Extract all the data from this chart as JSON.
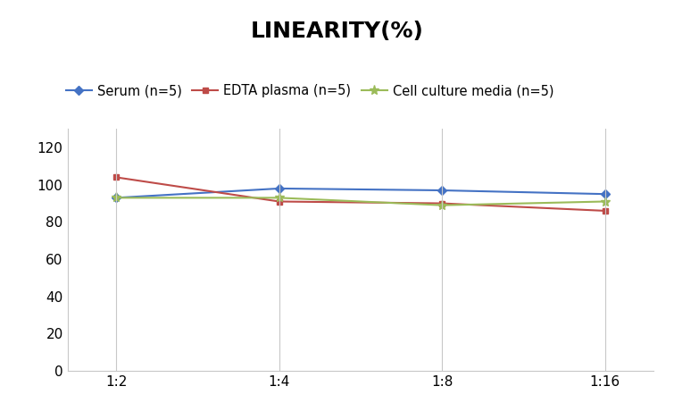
{
  "title": "LINEARITY(%)",
  "x_labels": [
    "1:2",
    "1:4",
    "1:8",
    "1:16"
  ],
  "series": [
    {
      "label": "Serum (n=5)",
      "values": [
        93,
        98,
        97,
        95
      ],
      "color": "#4472C4",
      "marker": "D",
      "markersize": 5
    },
    {
      "label": "EDTA plasma (n=5)",
      "values": [
        104,
        91,
        90,
        86
      ],
      "color": "#BE4B48",
      "marker": "s",
      "markersize": 5
    },
    {
      "label": "Cell culture media (n=5)",
      "values": [
        93,
        93,
        89,
        91
      ],
      "color": "#9BBB59",
      "marker": "*",
      "markersize": 8
    }
  ],
  "ylim": [
    0,
    130
  ],
  "yticks": [
    0,
    20,
    40,
    60,
    80,
    100,
    120
  ],
  "background_color": "#ffffff",
  "title_fontsize": 18,
  "legend_fontsize": 10.5,
  "tick_fontsize": 11,
  "linewidth": 1.5
}
